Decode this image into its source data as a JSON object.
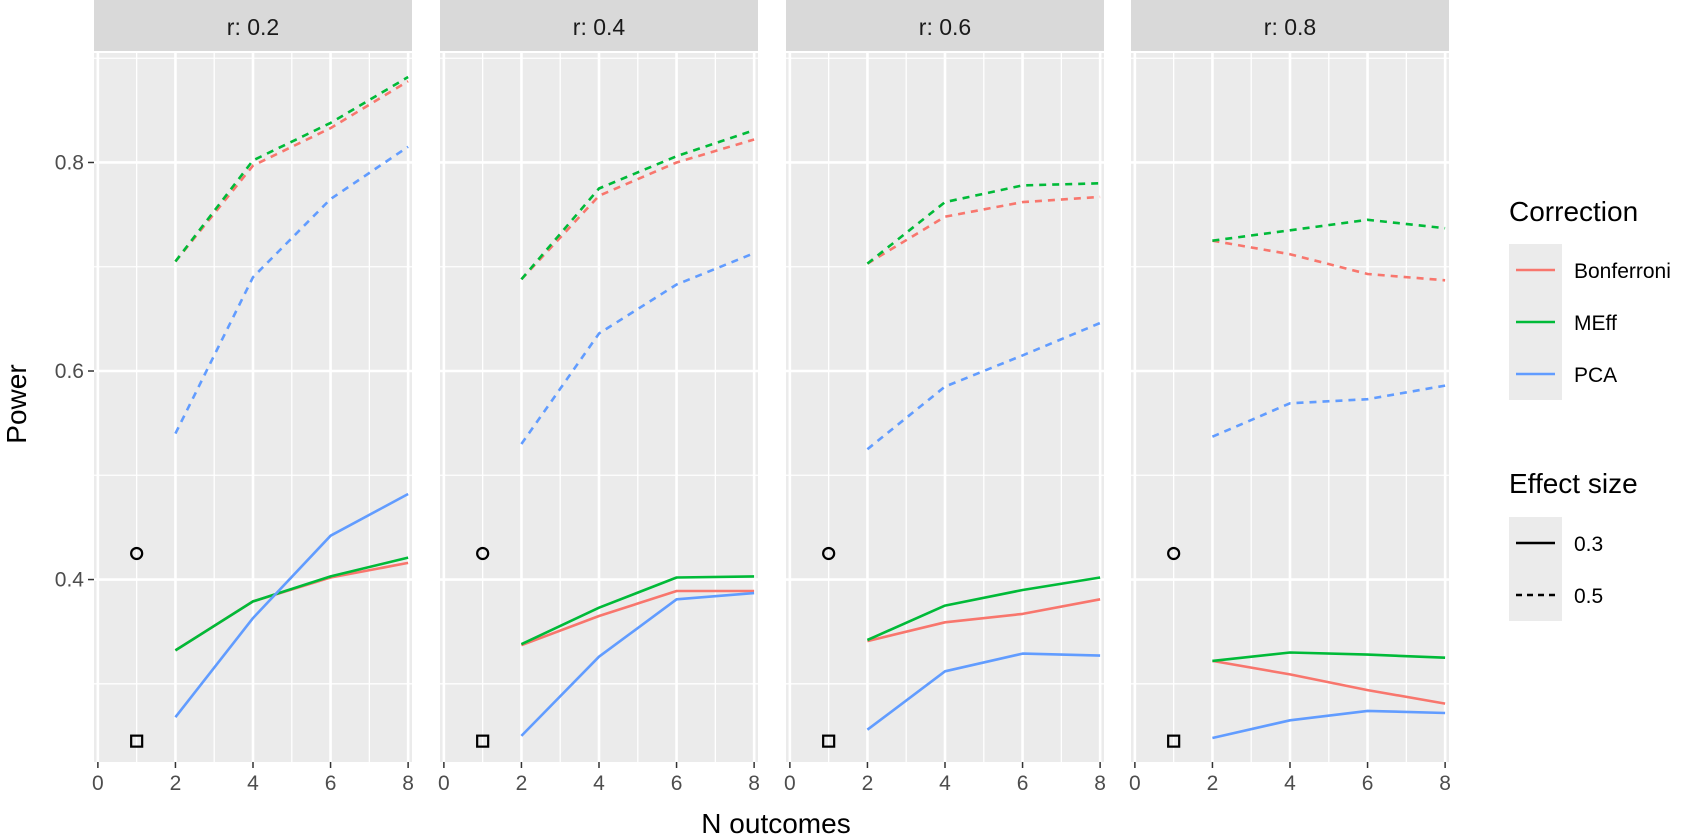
{
  "chart_data": {
    "type": "line",
    "xlabel": "N outcomes",
    "ylabel": "Power",
    "x_ticks": [
      0,
      2,
      4,
      6,
      8
    ],
    "y_ticks": [
      0.4,
      0.6,
      0.8
    ],
    "y_tick_labels": [
      "0.4",
      "0.6",
      "0.8"
    ],
    "xlim": [
      -0.1,
      8.1
    ],
    "ylim": [
      0.225,
      0.905
    ],
    "grid": true,
    "legend_position": "right",
    "legend_correction": {
      "title": "Correction",
      "entries": [
        {
          "name": "Bonferroni",
          "color": "#F8766D"
        },
        {
          "name": "MEff",
          "color": "#00BA38"
        },
        {
          "name": "PCA",
          "color": "#619CFF"
        }
      ]
    },
    "legend_effect": {
      "title": "Effect size",
      "entries": [
        {
          "name": "0.3",
          "linetype": "solid"
        },
        {
          "name": "0.5",
          "linetype": "dashed"
        }
      ]
    },
    "panels": [
      {
        "strip": "r: 0.2",
        "points": [
          {
            "x": 1,
            "y": 0.425,
            "shape": "circle"
          },
          {
            "x": 1,
            "y": 0.245,
            "shape": "square"
          }
        ],
        "series": [
          {
            "correction": "Bonferroni",
            "effect": "0.5",
            "x": [
              2,
              4,
              6,
              8
            ],
            "y": [
              0.705,
              0.797,
              0.833,
              0.878
            ]
          },
          {
            "correction": "MEff",
            "effect": "0.5",
            "x": [
              2,
              4,
              6,
              8
            ],
            "y": [
              0.705,
              0.802,
              0.838,
              0.882
            ]
          },
          {
            "correction": "PCA",
            "effect": "0.5",
            "x": [
              2,
              4,
              6,
              8
            ],
            "y": [
              0.54,
              0.69,
              0.765,
              0.815
            ]
          },
          {
            "correction": "Bonferroni",
            "effect": "0.3",
            "x": [
              2,
              4,
              6,
              8
            ],
            "y": [
              0.332,
              0.379,
              0.402,
              0.416
            ]
          },
          {
            "correction": "MEff",
            "effect": "0.3",
            "x": [
              2,
              4,
              6,
              8
            ],
            "y": [
              0.332,
              0.379,
              0.403,
              0.421
            ]
          },
          {
            "correction": "PCA",
            "effect": "0.3",
            "x": [
              2,
              4,
              6,
              8
            ],
            "y": [
              0.268,
              0.363,
              0.442,
              0.482
            ]
          }
        ]
      },
      {
        "strip": "r: 0.4",
        "points": [
          {
            "x": 1,
            "y": 0.425,
            "shape": "circle"
          },
          {
            "x": 1,
            "y": 0.245,
            "shape": "square"
          }
        ],
        "series": [
          {
            "correction": "Bonferroni",
            "effect": "0.5",
            "x": [
              2,
              4,
              6,
              8
            ],
            "y": [
              0.688,
              0.768,
              0.8,
              0.822
            ]
          },
          {
            "correction": "MEff",
            "effect": "0.5",
            "x": [
              2,
              4,
              6,
              8
            ],
            "y": [
              0.688,
              0.775,
              0.806,
              0.831
            ]
          },
          {
            "correction": "PCA",
            "effect": "0.5",
            "x": [
              2,
              4,
              6,
              8
            ],
            "y": [
              0.53,
              0.636,
              0.683,
              0.713
            ]
          },
          {
            "correction": "Bonferroni",
            "effect": "0.3",
            "x": [
              2,
              4,
              6,
              8
            ],
            "y": [
              0.337,
              0.365,
              0.389,
              0.389
            ]
          },
          {
            "correction": "MEff",
            "effect": "0.3",
            "x": [
              2,
              4,
              6,
              8
            ],
            "y": [
              0.338,
              0.373,
              0.402,
              0.403
            ]
          },
          {
            "correction": "PCA",
            "effect": "0.3",
            "x": [
              2,
              4,
              6,
              8
            ],
            "y": [
              0.25,
              0.326,
              0.381,
              0.387
            ]
          }
        ]
      },
      {
        "strip": "r: 0.6",
        "points": [
          {
            "x": 1,
            "y": 0.425,
            "shape": "circle"
          },
          {
            "x": 1,
            "y": 0.245,
            "shape": "square"
          }
        ],
        "series": [
          {
            "correction": "Bonferroni",
            "effect": "0.5",
            "x": [
              2,
              4,
              6,
              8
            ],
            "y": [
              0.703,
              0.748,
              0.762,
              0.767
            ]
          },
          {
            "correction": "MEff",
            "effect": "0.5",
            "x": [
              2,
              4,
              6,
              8
            ],
            "y": [
              0.703,
              0.762,
              0.778,
              0.78
            ]
          },
          {
            "correction": "PCA",
            "effect": "0.5",
            "x": [
              2,
              4,
              6,
              8
            ],
            "y": [
              0.525,
              0.585,
              0.615,
              0.646
            ]
          },
          {
            "correction": "Bonferroni",
            "effect": "0.3",
            "x": [
              2,
              4,
              6,
              8
            ],
            "y": [
              0.341,
              0.359,
              0.367,
              0.381
            ]
          },
          {
            "correction": "MEff",
            "effect": "0.3",
            "x": [
              2,
              4,
              6,
              8
            ],
            "y": [
              0.342,
              0.375,
              0.39,
              0.402
            ]
          },
          {
            "correction": "PCA",
            "effect": "0.3",
            "x": [
              2,
              4,
              6,
              8
            ],
            "y": [
              0.256,
              0.312,
              0.329,
              0.327
            ]
          }
        ]
      },
      {
        "strip": "r: 0.8",
        "points": [
          {
            "x": 1,
            "y": 0.425,
            "shape": "circle"
          },
          {
            "x": 1,
            "y": 0.245,
            "shape": "square"
          }
        ],
        "series": [
          {
            "correction": "Bonferroni",
            "effect": "0.5",
            "x": [
              2,
              4,
              6,
              8
            ],
            "y": [
              0.725,
              0.712,
              0.693,
              0.687
            ]
          },
          {
            "correction": "MEff",
            "effect": "0.5",
            "x": [
              2,
              4,
              6,
              8
            ],
            "y": [
              0.725,
              0.735,
              0.745,
              0.737
            ]
          },
          {
            "correction": "PCA",
            "effect": "0.5",
            "x": [
              2,
              4,
              6,
              8
            ],
            "y": [
              0.537,
              0.569,
              0.573,
              0.586
            ]
          },
          {
            "correction": "Bonferroni",
            "effect": "0.3",
            "x": [
              2,
              4,
              6,
              8
            ],
            "y": [
              0.322,
              0.309,
              0.294,
              0.281
            ]
          },
          {
            "correction": "MEff",
            "effect": "0.3",
            "x": [
              2,
              4,
              6,
              8
            ],
            "y": [
              0.322,
              0.33,
              0.328,
              0.325
            ]
          },
          {
            "correction": "PCA",
            "effect": "0.3",
            "x": [
              2,
              4,
              6,
              8
            ],
            "y": [
              0.248,
              0.265,
              0.274,
              0.272
            ]
          }
        ]
      }
    ]
  }
}
